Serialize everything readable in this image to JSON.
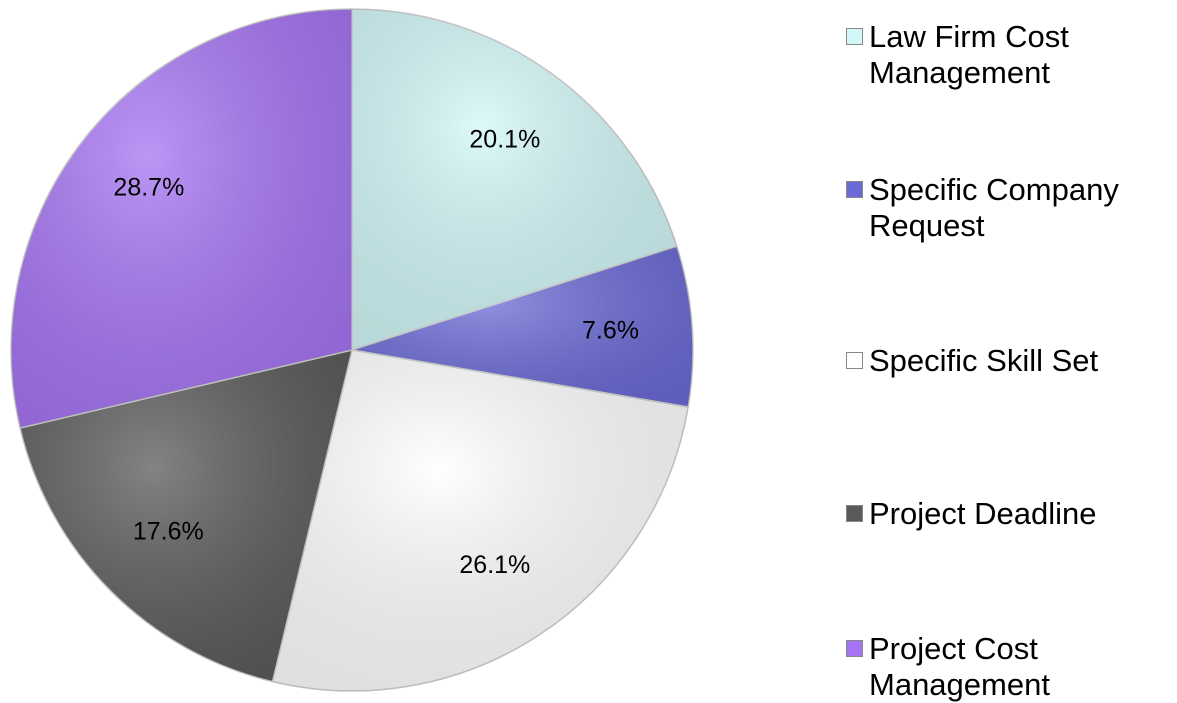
{
  "chart_data": {
    "type": "pie",
    "categories": [
      "Law Firm Cost Management",
      "Specific Company Request",
      "Specific Skill Set",
      "Project Deadline",
      "Project Cost Management"
    ],
    "values": [
      20.1,
      7.6,
      26.1,
      17.6,
      28.7
    ],
    "value_labels": [
      "20.1%",
      "7.6%",
      "26.1%",
      "17.6%",
      "28.7%"
    ],
    "colors": [
      "#d2f7f8",
      "#6b6bd6",
      "#ffffff",
      "#5a5a5a",
      "#a574f2"
    ],
    "legend": "right"
  }
}
